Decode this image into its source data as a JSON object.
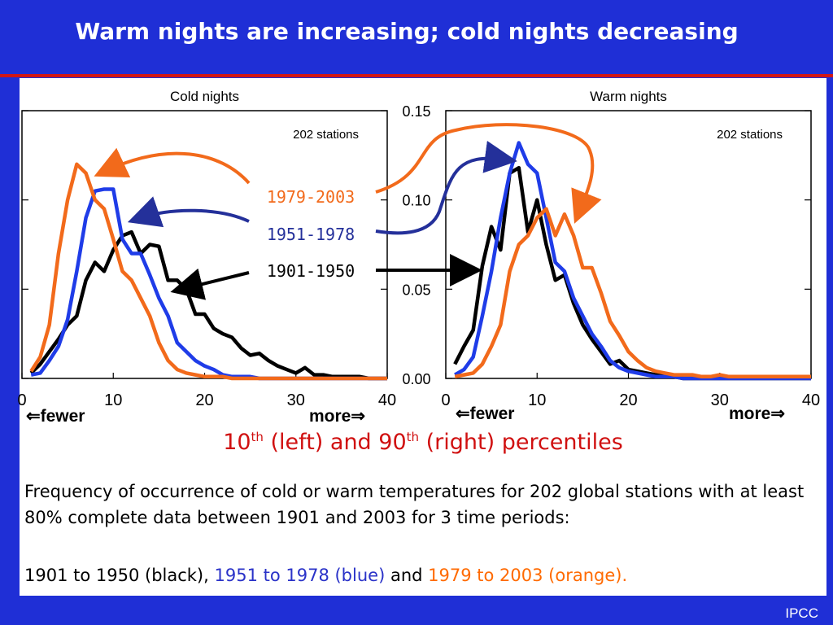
{
  "slide": {
    "title": "Warm nights are increasing; cold nights decreasing",
    "subtitle_left_num": "10",
    "subtitle_left_sup": "th",
    "subtitle_mid": " (left) and 90",
    "subtitle_right_sup": "th",
    "subtitle_end": " (right) percentiles",
    "caption_line1": "Frequency of occurrence of cold or warm temperatures for 202 global stations with at least 80% complete data between 1901 and 2003 for 3 time periods:",
    "caption_black": "1901 to 1950 (black),",
    "caption_blue": "1951 to 1978 (blue)",
    "caption_and": "and",
    "caption_orange": "1979 to 2003 (orange).",
    "credit": "IPCC",
    "fewer_left": "⇐fewer",
    "more_left": "more⇒",
    "fewer_right": "⇐fewer",
    "more_right": "more⇒"
  },
  "colors": {
    "black": "#000000",
    "blue": "#1f3ce8",
    "orange": "#f26a1b",
    "background": "#1f2fd6"
  },
  "chart_data": [
    {
      "type": "line",
      "title": "Cold nights",
      "annotation": "202 stations",
      "xlim": [
        0,
        40
      ],
      "ylim": [
        0,
        0.15
      ],
      "x_ticks": [
        0,
        10,
        20,
        30,
        40
      ],
      "y_ticks": [
        "0.00",
        "0.05",
        "0.10",
        "0.15"
      ],
      "series": [
        {
          "name": "1901-1950",
          "color": "#000000",
          "x": [
            1,
            2,
            3,
            4,
            5,
            6,
            7,
            8,
            9,
            10,
            11,
            12,
            13,
            14,
            15,
            16,
            17,
            18,
            19,
            20,
            21,
            22,
            23,
            24,
            25,
            26,
            27,
            28,
            29,
            30,
            31,
            32,
            33,
            34,
            35,
            36,
            37,
            38,
            39,
            40
          ],
          "values": [
            0.003,
            0.008,
            0.015,
            0.022,
            0.03,
            0.035,
            0.055,
            0.065,
            0.06,
            0.072,
            0.08,
            0.082,
            0.07,
            0.075,
            0.074,
            0.055,
            0.055,
            0.05,
            0.036,
            0.036,
            0.028,
            0.025,
            0.023,
            0.017,
            0.013,
            0.014,
            0.01,
            0.007,
            0.005,
            0.003,
            0.006,
            0.002,
            0.002,
            0.001,
            0.001,
            0.001,
            0.001,
            0.0,
            0.0,
            0.0
          ]
        },
        {
          "name": "1951-1978",
          "color": "#1f3ce8",
          "x": [
            1,
            2,
            3,
            4,
            5,
            6,
            7,
            8,
            9,
            10,
            11,
            12,
            13,
            14,
            15,
            16,
            17,
            18,
            19,
            20,
            21,
            22,
            23,
            24,
            25,
            26,
            27,
            28,
            29,
            30,
            31,
            32,
            33,
            34,
            35,
            36,
            37,
            38,
            39,
            40
          ],
          "values": [
            0.002,
            0.003,
            0.01,
            0.018,
            0.033,
            0.06,
            0.09,
            0.105,
            0.106,
            0.106,
            0.078,
            0.07,
            0.07,
            0.058,
            0.045,
            0.035,
            0.02,
            0.015,
            0.01,
            0.007,
            0.005,
            0.002,
            0.001,
            0.001,
            0.001,
            0.0,
            0.0,
            0.0,
            0.0,
            0.0,
            0.0,
            0.0,
            0.0,
            0.0,
            0.0,
            0.0,
            0.0,
            0.0,
            0.0,
            0.0
          ]
        },
        {
          "name": "1979-2003",
          "color": "#f26a1b",
          "x": [
            1,
            2,
            3,
            4,
            5,
            6,
            7,
            8,
            9,
            10,
            11,
            12,
            13,
            14,
            15,
            16,
            17,
            18,
            19,
            20,
            21,
            22,
            23,
            24,
            25,
            26,
            27,
            28,
            29,
            30,
            31,
            32,
            33,
            34,
            35,
            36,
            37,
            38,
            39,
            40
          ],
          "values": [
            0.004,
            0.012,
            0.03,
            0.07,
            0.1,
            0.12,
            0.115,
            0.1,
            0.095,
            0.078,
            0.06,
            0.055,
            0.045,
            0.035,
            0.02,
            0.01,
            0.005,
            0.003,
            0.002,
            0.001,
            0.001,
            0.001,
            0.0,
            0.0,
            0.0,
            0.0,
            0.0,
            0.0,
            0.0,
            0.0,
            0.0,
            0.0,
            0.0,
            0.0,
            0.0,
            0.0,
            0.0,
            0.0,
            0.0,
            0.0
          ]
        }
      ]
    },
    {
      "type": "line",
      "title": "Warm nights",
      "annotation": "202 stations",
      "xlim": [
        0,
        40
      ],
      "ylim": [
        0,
        0.15
      ],
      "x_ticks": [
        0,
        10,
        20,
        30,
        40
      ],
      "series": [
        {
          "name": "1901-1950",
          "color": "#000000",
          "x": [
            1,
            2,
            3,
            4,
            5,
            6,
            7,
            8,
            9,
            10,
            11,
            12,
            13,
            14,
            15,
            16,
            17,
            18,
            19,
            20,
            21,
            22,
            23,
            24,
            25,
            26,
            27,
            28,
            29,
            30,
            31,
            32,
            33,
            34,
            35,
            36,
            37,
            38,
            39,
            40
          ],
          "values": [
            0.008,
            0.018,
            0.027,
            0.063,
            0.085,
            0.072,
            0.115,
            0.118,
            0.082,
            0.1,
            0.075,
            0.055,
            0.058,
            0.042,
            0.03,
            0.022,
            0.015,
            0.008,
            0.01,
            0.005,
            0.004,
            0.003,
            0.002,
            0.002,
            0.001,
            0.0,
            0.0,
            0.0,
            0.0,
            0.0,
            0.0,
            0.0,
            0.0,
            0.0,
            0.0,
            0.0,
            0.0,
            0.0,
            0.0,
            0.0
          ]
        },
        {
          "name": "1951-1978",
          "color": "#1f3ce8",
          "x": [
            1,
            2,
            3,
            4,
            5,
            6,
            7,
            8,
            9,
            10,
            11,
            12,
            13,
            14,
            15,
            16,
            17,
            18,
            19,
            20,
            21,
            22,
            23,
            24,
            25,
            26,
            27,
            28,
            29,
            30,
            31,
            32,
            33,
            34,
            35,
            36,
            37,
            38,
            39,
            40
          ],
          "values": [
            0.002,
            0.005,
            0.012,
            0.035,
            0.06,
            0.09,
            0.115,
            0.132,
            0.12,
            0.115,
            0.09,
            0.065,
            0.06,
            0.045,
            0.035,
            0.025,
            0.018,
            0.01,
            0.006,
            0.004,
            0.003,
            0.002,
            0.001,
            0.001,
            0.001,
            0.0,
            0.0,
            0.0,
            0.0,
            0.0,
            0.0,
            0.0,
            0.0,
            0.0,
            0.0,
            0.0,
            0.0,
            0.0,
            0.0,
            0.0
          ]
        },
        {
          "name": "1979-2003",
          "color": "#f26a1b",
          "x": [
            1,
            2,
            3,
            4,
            5,
            6,
            7,
            8,
            9,
            10,
            11,
            12,
            13,
            14,
            15,
            16,
            17,
            18,
            19,
            20,
            21,
            22,
            23,
            24,
            25,
            26,
            27,
            28,
            29,
            30,
            31,
            32,
            33,
            34,
            35,
            36,
            37,
            38,
            39,
            40
          ],
          "values": [
            0.001,
            0.002,
            0.003,
            0.008,
            0.018,
            0.03,
            0.06,
            0.075,
            0.08,
            0.09,
            0.095,
            0.08,
            0.092,
            0.08,
            0.062,
            0.062,
            0.048,
            0.032,
            0.024,
            0.015,
            0.01,
            0.006,
            0.004,
            0.003,
            0.002,
            0.002,
            0.002,
            0.001,
            0.001,
            0.002,
            0.001,
            0.001,
            0.001,
            0.001,
            0.001,
            0.001,
            0.001,
            0.001,
            0.001,
            0.001
          ]
        }
      ]
    }
  ]
}
